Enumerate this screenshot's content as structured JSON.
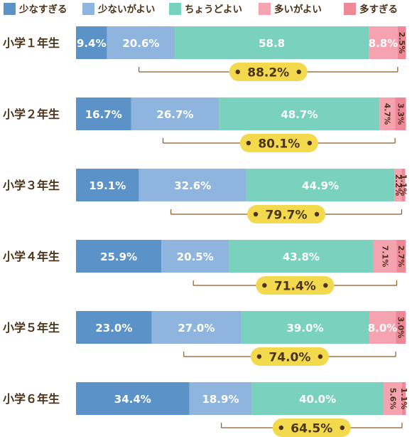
{
  "chart_data": {
    "type": "bar",
    "stacked": true,
    "orientation": "horizontal",
    "legend_position": "top",
    "series": [
      {
        "name": "少なすぎる",
        "color": "#5b93c9",
        "values": [
          9.4,
          16.7,
          19.1,
          25.9,
          23.0,
          34.4
        ]
      },
      {
        "name": "少ないがよい",
        "color": "#8fb4dd",
        "values": [
          20.6,
          26.7,
          32.6,
          20.5,
          27.0,
          18.9
        ]
      },
      {
        "name": "ちょうどよい",
        "color": "#79d1be",
        "values": [
          58.8,
          48.7,
          44.9,
          43.8,
          39.0,
          40.0
        ]
      },
      {
        "name": "多いがよい",
        "color": "#f5a3b1",
        "values": [
          8.8,
          4.7,
          2.2,
          7.1,
          8.0,
          5.6
        ]
      },
      {
        "name": "多すぎる",
        "color": "#ee8797",
        "values": [
          2.5,
          3.3,
          1.1,
          2.7,
          3.0,
          1.1
        ]
      }
    ],
    "categories": [
      "小学１年生",
      "小学２年生",
      "小学３年生",
      "小学４年生",
      "小学５年生",
      "小学６年生"
    ],
    "value_labels": [
      [
        "9.4%",
        "20.6%",
        "58.8",
        "8.8%",
        "2.5%"
      ],
      [
        "16.7%",
        "26.7%",
        "48.7%",
        "4.7%",
        "3.3%"
      ],
      [
        "19.1%",
        "32.6%",
        "44.9%",
        "2.2%",
        "1.1%"
      ],
      [
        "25.9%",
        "20.5%",
        "43.8%",
        "7.1%",
        "2.7%"
      ],
      [
        "23.0%",
        "27.0%",
        "39.0%",
        "8.0%",
        "3.0%"
      ],
      [
        "34.4%",
        "18.9%",
        "40.0%",
        "5.6%",
        "1.1%"
      ]
    ],
    "range_totals": [
      "88.2%",
      "80.1%",
      "79.7%",
      "71.4%",
      "74.0%",
      "64.5%"
    ],
    "range_series": [
      "少ないがよい",
      "ちょうどよい",
      "多いがよい"
    ],
    "total_badge_color": "#f2d94e",
    "xlim": [
      0,
      100
    ]
  }
}
